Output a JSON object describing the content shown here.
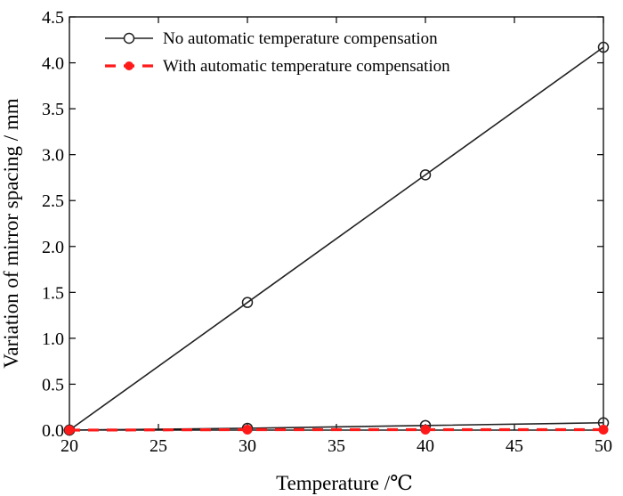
{
  "chart_data": {
    "type": "line",
    "title": "",
    "xlabel": "Temperature /℃",
    "ylabel": "Variation of mirror spacing / mm",
    "xlim": [
      20,
      50
    ],
    "ylim": [
      0.0,
      4.5
    ],
    "x_ticks": [
      20,
      25,
      30,
      35,
      40,
      45,
      50
    ],
    "x_tick_labels": [
      "20",
      "25",
      "30",
      "35",
      "40",
      "45",
      "50"
    ],
    "y_ticks": [
      0.0,
      0.5,
      1.0,
      1.5,
      2.0,
      2.5,
      3.0,
      3.5,
      4.0,
      4.5
    ],
    "y_tick_labels": [
      "0.0",
      "0.5",
      "1.0",
      "1.5",
      "2.0",
      "2.5",
      "3.0",
      "3.5",
      "4.0",
      "4.5"
    ],
    "grid": false,
    "legend_position": "top-left",
    "series": [
      {
        "name": "No automatic temperature compensation",
        "color": "#222222",
        "marker": "open-circle",
        "line_style": "solid",
        "x": [
          20,
          30,
          40,
          50
        ],
        "y": [
          0.0,
          1.39,
          2.78,
          4.17
        ]
      },
      {
        "name": "",
        "color": "#222222",
        "marker": "open-circle",
        "line_style": "solid",
        "x": [
          20,
          30,
          40,
          50
        ],
        "y": [
          0.0,
          0.02,
          0.05,
          0.08
        ]
      },
      {
        "name": "With automatic temperature compensation",
        "color": "#ff1a1a",
        "marker": "filled-circle",
        "line_style": "dashed",
        "x": [
          20,
          30,
          40,
          50
        ],
        "y": [
          0.0,
          0.005,
          0.005,
          0.005
        ]
      }
    ]
  }
}
